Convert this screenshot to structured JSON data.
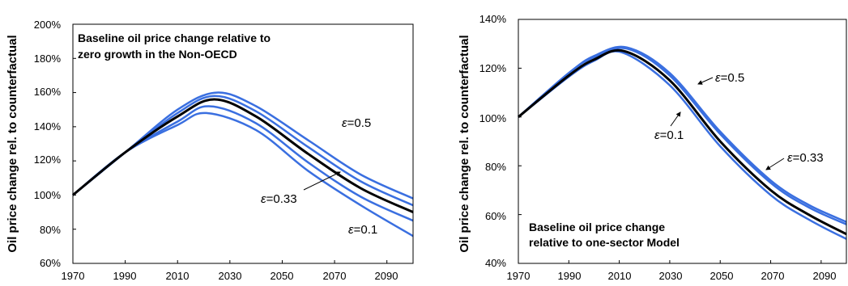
{
  "chart_data": [
    {
      "type": "line",
      "ylabel": "Oil price change rel. to counterfactual",
      "annotation_lines": [
        "Baseline oil price change relative to",
        "zero growth in the Non-OECD"
      ],
      "xlim": [
        1970,
        2100
      ],
      "ylim": [
        60,
        200
      ],
      "xticks": [
        1970,
        1990,
        2010,
        2030,
        2050,
        2070,
        2090
      ],
      "yticks": [
        60,
        80,
        100,
        120,
        140,
        160,
        180,
        200
      ],
      "ytick_labels": [
        "60%",
        "80%",
        "100%",
        "120%",
        "140%",
        "160%",
        "180%",
        "200%"
      ],
      "grid": false,
      "colors": {
        "baseline": "#000000",
        "sensitivity": "#3a6fe0"
      },
      "series": [
        {
          "role": "sensitivity",
          "x": [
            1970,
            1990,
            2010,
            2025,
            2040,
            2060,
            2080,
            2100
          ],
          "y": [
            100,
            125,
            150,
            160,
            152,
            132,
            112,
            98
          ]
        },
        {
          "role": "sensitivity",
          "x": [
            1970,
            1990,
            2010,
            2024,
            2040,
            2060,
            2080,
            2100
          ],
          "y": [
            100,
            125,
            148,
            158,
            149,
            128,
            108,
            94
          ]
        },
        {
          "role": "baseline",
          "x": [
            1970,
            1990,
            2010,
            2024,
            2040,
            2060,
            2080,
            2100
          ],
          "y": [
            100,
            125,
            146,
            156,
            146,
            124,
            104,
            90
          ]
        },
        {
          "role": "sensitivity",
          "x": [
            1970,
            1990,
            2010,
            2022,
            2040,
            2060,
            2080,
            2100
          ],
          "y": [
            100,
            125,
            143,
            152,
            142,
            119,
            99,
            85
          ]
        },
        {
          "role": "sensitivity",
          "x": [
            1970,
            1990,
            2010,
            2021,
            2040,
            2060,
            2080,
            2100
          ],
          "y": [
            100,
            125,
            141,
            148,
            138,
            114,
            94,
            76
          ]
        }
      ],
      "labels": [
        {
          "symbol": "ε",
          "text": "=0.5"
        },
        {
          "symbol": "ε",
          "text": "=0.33"
        },
        {
          "symbol": "ε",
          "text": "=0.1"
        }
      ]
    },
    {
      "type": "line",
      "ylabel": "Oil price change rel. to counterfactual",
      "annotation_lines": [
        "Baseline oil price change",
        "relative to one-sector Model"
      ],
      "xlim": [
        1970,
        2100
      ],
      "ylim": [
        40,
        140
      ],
      "xticks": [
        1970,
        1990,
        2010,
        2030,
        2050,
        2070,
        2090
      ],
      "yticks": [
        40,
        60,
        80,
        100,
        120,
        140
      ],
      "ytick_labels": [
        "40%",
        "60%",
        "80%",
        "100%",
        "120%",
        "140%"
      ],
      "grid": false,
      "colors": {
        "baseline": "#000000",
        "sensitivity": "#3a6fe0"
      },
      "series": [
        {
          "role": "sensitivity",
          "x": [
            1970,
            1990,
            2000,
            2013,
            2030,
            2050,
            2070,
            2085,
            2100
          ],
          "y": [
            100,
            118,
            125,
            128.5,
            118,
            94,
            74,
            64,
            57
          ]
        },
        {
          "role": "sensitivity",
          "x": [
            1970,
            1990,
            2000,
            2013,
            2030,
            2050,
            2070,
            2085,
            2100
          ],
          "y": [
            100,
            118,
            124.5,
            128,
            117,
            93,
            73,
            63,
            56
          ]
        },
        {
          "role": "baseline",
          "x": [
            1970,
            1990,
            2000,
            2012,
            2030,
            2050,
            2070,
            2085,
            2100
          ],
          "y": [
            100,
            117,
            123.5,
            127,
            115,
            90,
            70,
            60,
            52
          ]
        },
        {
          "role": "sensitivity",
          "x": [
            1970,
            1990,
            2000,
            2011,
            2030,
            2050,
            2070,
            2085,
            2100
          ],
          "y": [
            100,
            116.5,
            123,
            126.5,
            113,
            88,
            68,
            58,
            50
          ]
        }
      ],
      "labels": [
        {
          "symbol": "ε",
          "text": "=0.5"
        },
        {
          "symbol": "ε",
          "text": "=0.1"
        },
        {
          "symbol": "ε",
          "text": "=0.33"
        }
      ]
    }
  ]
}
